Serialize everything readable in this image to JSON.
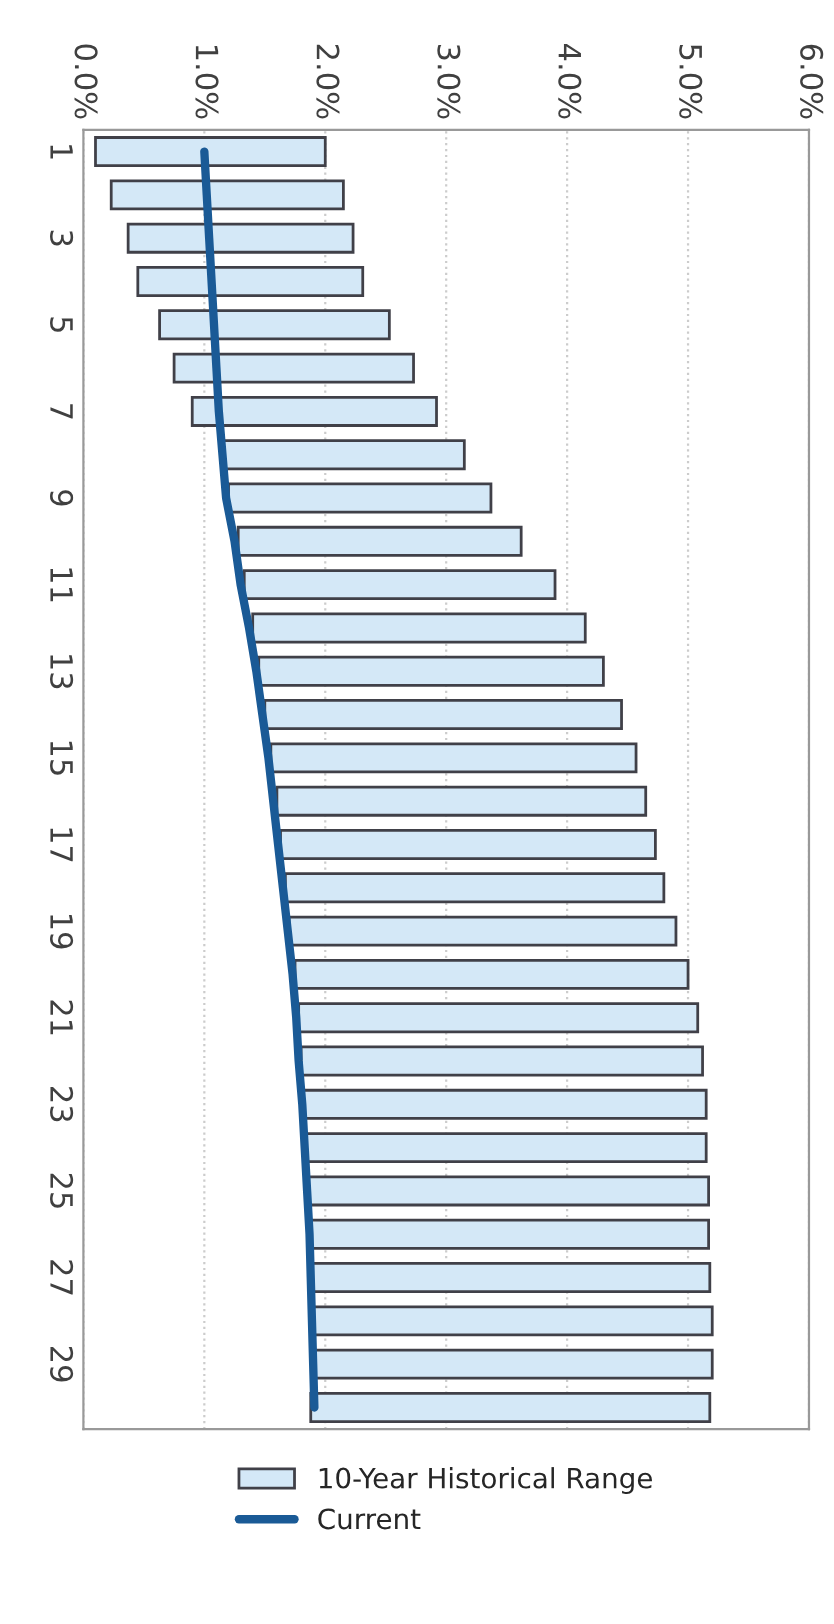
{
  "chart_data": {
    "type": "bar",
    "orientation": "horizontal",
    "categories": [
      "1",
      null,
      "3",
      null,
      "5",
      null,
      "7",
      null,
      "9",
      null,
      "11",
      null,
      "13",
      null,
      "15",
      null,
      "17",
      null,
      "19",
      null,
      "21",
      null,
      "23",
      null,
      "25",
      null,
      "27",
      null,
      "29",
      null
    ],
    "series": [
      {
        "name": "10-Year Historical Range",
        "color": "#d4e8f7",
        "base": [
          0.1,
          0.23,
          0.37,
          0.45,
          0.63,
          0.75,
          0.9,
          1.15,
          1.2,
          1.28,
          1.33,
          1.4,
          1.45,
          1.5,
          1.55,
          1.6,
          1.63,
          1.67,
          1.7,
          1.75,
          1.78,
          1.8,
          1.82,
          1.83,
          1.85,
          1.87,
          1.88,
          1.9,
          1.9,
          1.88
        ],
        "values": [
          1.9,
          1.92,
          1.86,
          1.86,
          1.9,
          1.98,
          2.02,
          2.0,
          2.17,
          2.34,
          2.57,
          2.75,
          2.85,
          2.95,
          3.02,
          3.05,
          3.1,
          3.13,
          3.2,
          3.25,
          3.3,
          3.32,
          3.33,
          3.32,
          3.32,
          3.3,
          3.3,
          3.3,
          3.3,
          3.3
        ]
      },
      {
        "name": "Current",
        "type": "line",
        "color": "#1a5a96",
        "values": [
          1.0,
          1.02,
          1.04,
          1.06,
          1.08,
          1.1,
          1.12,
          1.15,
          1.18,
          1.25,
          1.3,
          1.37,
          1.43,
          1.48,
          1.53,
          1.57,
          1.61,
          1.65,
          1.69,
          1.73,
          1.76,
          1.78,
          1.81,
          1.83,
          1.85,
          1.87,
          1.88,
          1.89,
          1.9,
          1.91
        ]
      }
    ],
    "xlim": [
      0,
      6
    ],
    "xticks": [
      {
        "value": 0,
        "label": "0.0%"
      },
      {
        "value": 1,
        "label": "1.0%"
      },
      {
        "value": 2,
        "label": "2.0%"
      },
      {
        "value": 3,
        "label": "3.0%"
      },
      {
        "value": 4,
        "label": "4.0%"
      },
      {
        "value": 5,
        "label": "5.0%"
      },
      {
        "value": 6,
        "label": "6.0%"
      }
    ],
    "grid": "x",
    "legend": "bottom",
    "marker": "none",
    "line_style": "solid"
  }
}
